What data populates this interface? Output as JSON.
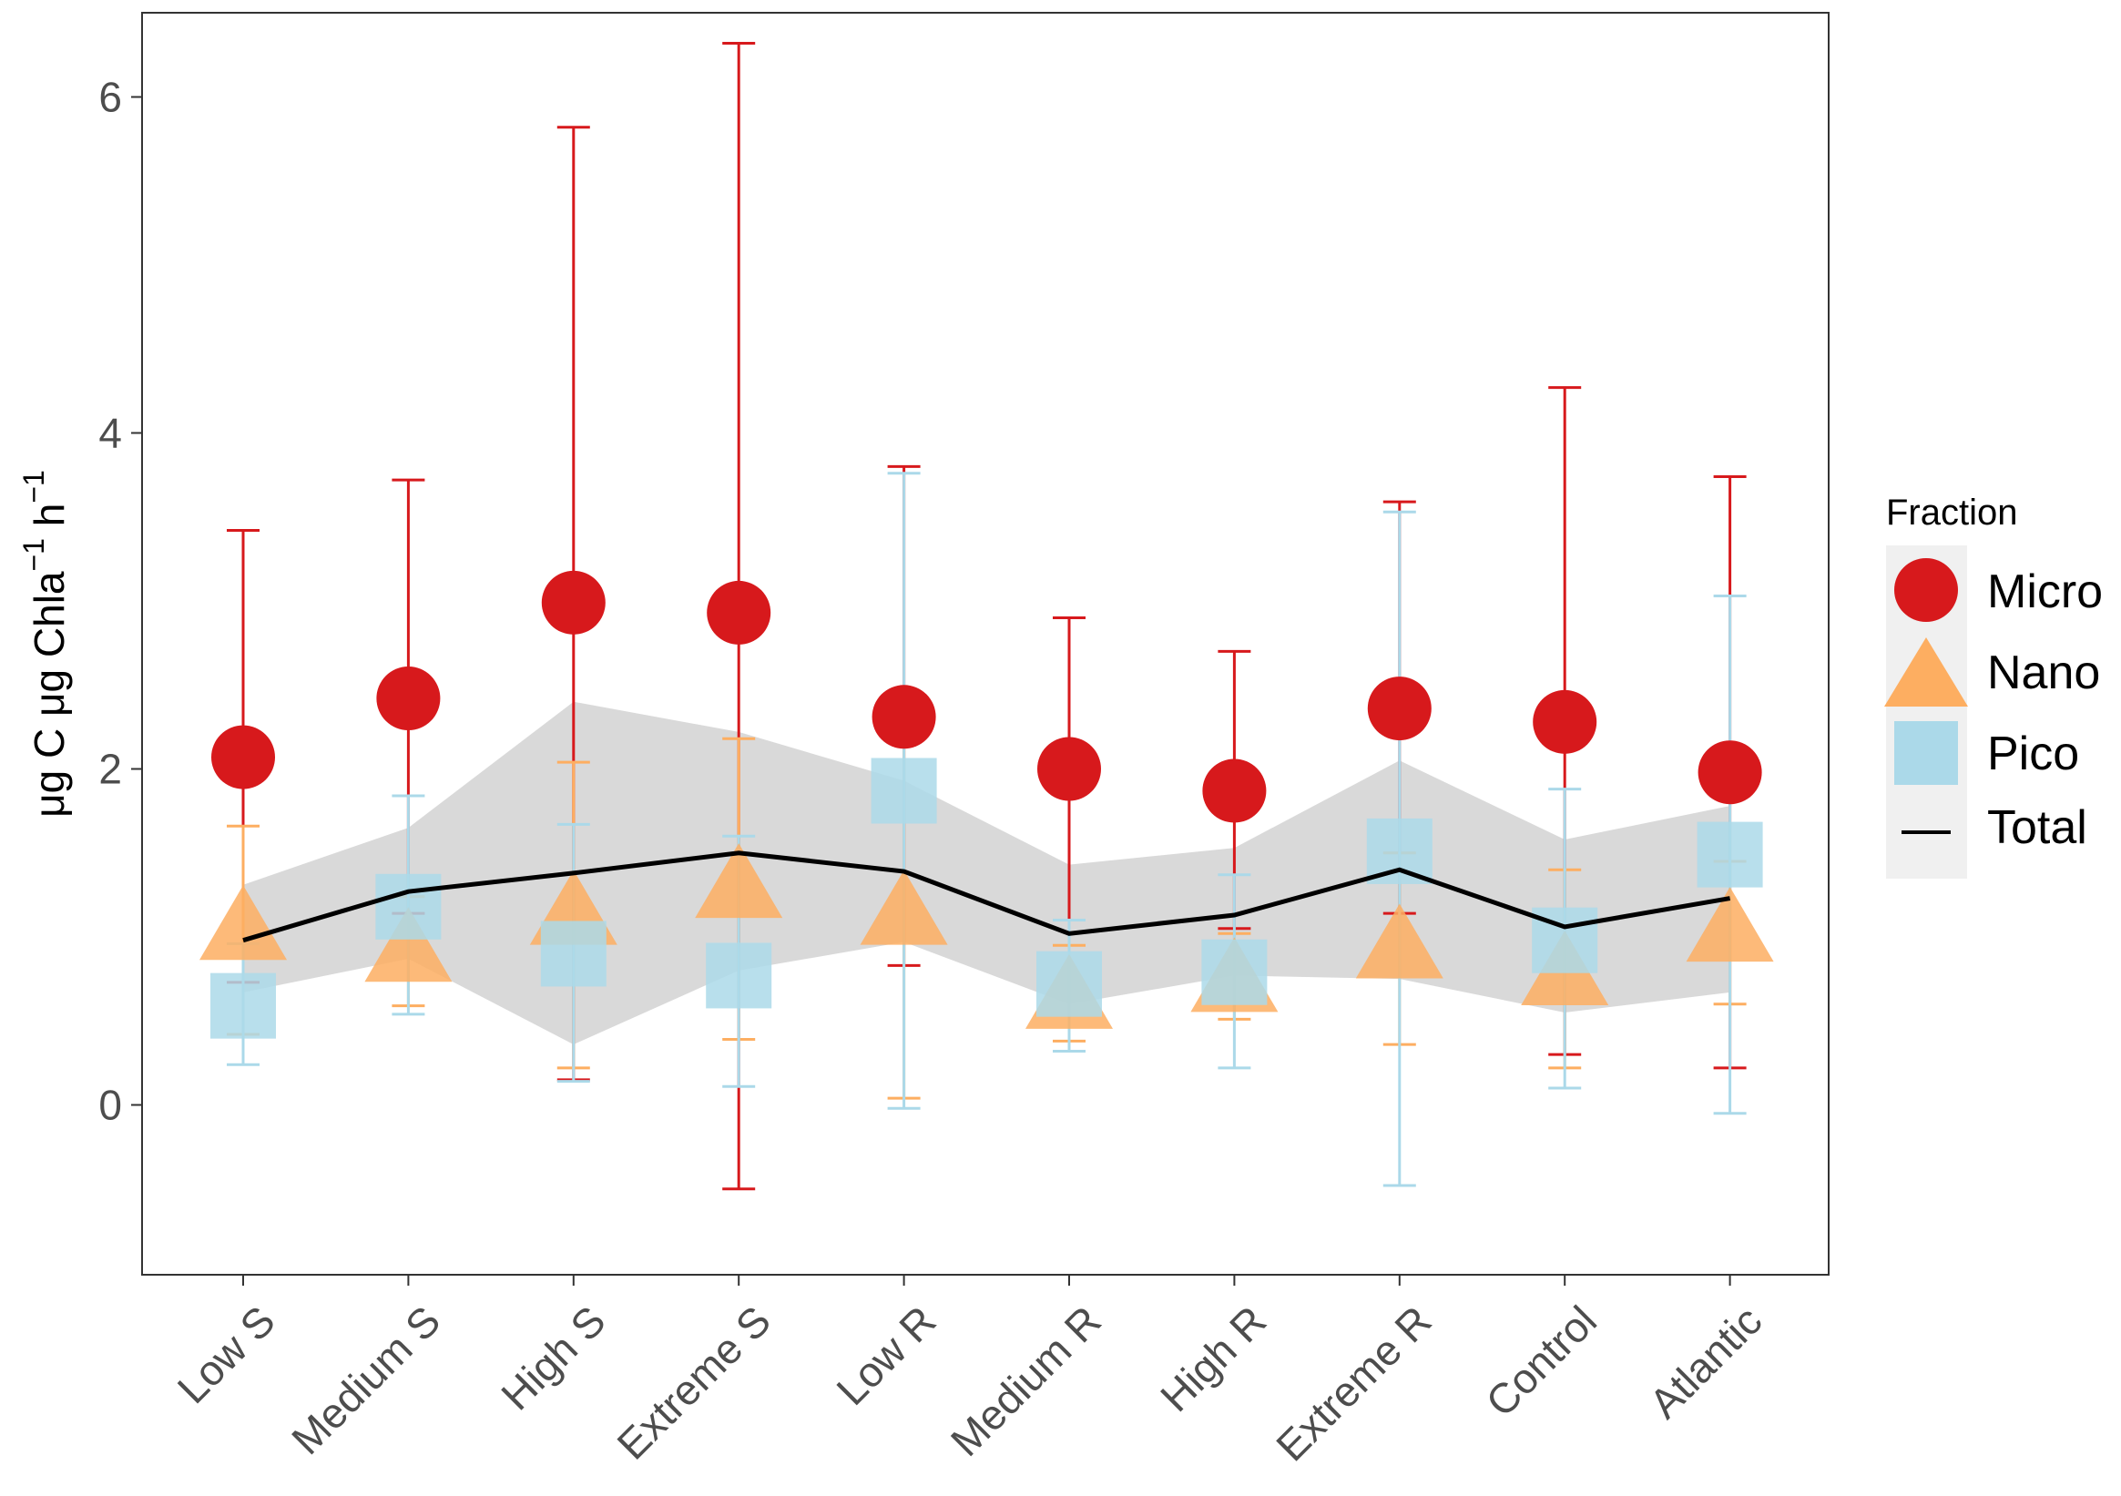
{
  "chart_data": {
    "type": "scatter",
    "ylabel": "μg C μg Chla⁻¹ h⁻¹",
    "ylabel_parts": {
      "main": "μg C μg Chla",
      "exp1": "−1",
      "unit": " h",
      "exp2": "−1"
    },
    "xlabel": "",
    "ylim": [
      -0.95,
      6.5
    ],
    "yticks": [
      0,
      2,
      4,
      6
    ],
    "ytick_labels": [
      "0",
      "2",
      "4",
      "6"
    ],
    "categories": [
      "Low S",
      "Medium S",
      "High S",
      "Extreme S",
      "Low R",
      "Medium R",
      "High R",
      "Extreme R",
      "Control",
      "Atlantic"
    ],
    "legend": {
      "title": "Fraction",
      "position": "right",
      "entries": [
        "Micro",
        "Nano",
        "Pico",
        "Total"
      ]
    },
    "colors": {
      "micro": "#d7191c",
      "nano": "#fdae61",
      "pico": "#abd9e9",
      "total": "#000000",
      "ribbon": "#d9d9d9",
      "panel_border": "#333333",
      "tick_text": "#4d4d4d"
    },
    "series": [
      {
        "name": "Micro",
        "shape": "circle",
        "values": [
          2.07,
          2.42,
          2.99,
          2.93,
          2.31,
          2.0,
          1.87,
          2.36,
          2.28,
          1.98
        ],
        "upper": [
          3.42,
          3.72,
          5.82,
          6.32,
          3.8,
          2.9,
          2.7,
          3.59,
          4.27,
          3.74
        ],
        "lower": [
          0.73,
          1.14,
          0.15,
          -0.5,
          0.83,
          1.1,
          1.05,
          1.14,
          0.3,
          0.22
        ]
      },
      {
        "name": "Nano",
        "shape": "triangle",
        "values": [
          1.08,
          0.95,
          1.17,
          1.33,
          1.17,
          0.67,
          0.77,
          0.97,
          0.81,
          1.07
        ],
        "upper": [
          1.66,
          1.24,
          2.04,
          2.18,
          2.19,
          0.95,
          1.02,
          1.5,
          1.4,
          1.45
        ],
        "lower": [
          0.42,
          0.59,
          0.22,
          0.39,
          0.04,
          0.38,
          0.51,
          0.36,
          0.22,
          0.6
        ]
      },
      {
        "name": "Pico",
        "shape": "square",
        "values": [
          0.59,
          1.18,
          0.9,
          0.77,
          1.87,
          0.72,
          0.79,
          1.51,
          0.98,
          1.49
        ],
        "upper": [
          0.96,
          1.84,
          1.67,
          1.6,
          3.76,
          1.1,
          1.37,
          3.53,
          1.88,
          3.03
        ],
        "lower": [
          0.24,
          0.54,
          0.14,
          0.11,
          -0.02,
          0.32,
          0.22,
          -0.48,
          0.1,
          -0.05
        ]
      },
      {
        "name": "Total",
        "shape": "line",
        "values": [
          0.98,
          1.27,
          1.38,
          1.5,
          1.39,
          1.02,
          1.13,
          1.4,
          1.06,
          1.23
        ],
        "upper": [
          1.31,
          1.65,
          2.4,
          2.22,
          1.93,
          1.43,
          1.53,
          2.05,
          1.58,
          1.78
        ],
        "lower": [
          0.67,
          0.87,
          0.36,
          0.8,
          0.97,
          0.6,
          0.77,
          0.75,
          0.55,
          0.67
        ]
      }
    ]
  }
}
